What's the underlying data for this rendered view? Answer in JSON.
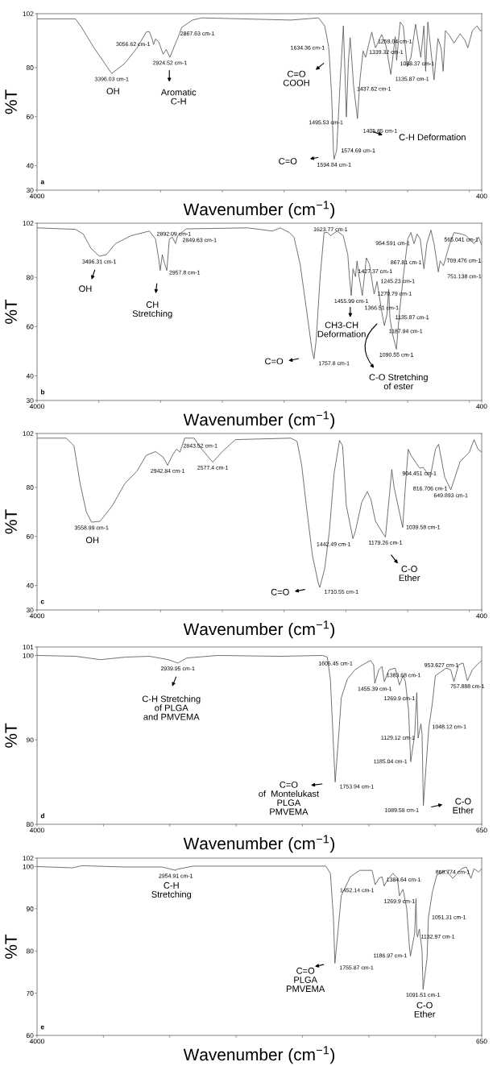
{
  "chart_data": [
    {
      "type": "line",
      "xlabel": "Wavenumber (cm$^{−1}$)",
      "ylabel": "%T",
      "xlim": [
        4000,
        400
      ],
      "ylim": [
        30,
        102
      ],
      "xticks": [
        4000,
        {
          "value": 3500,
          "label": null
        },
        {
          "value": 3000,
          "label": null
        },
        {
          "value": 2500,
          "label": null
        },
        {
          "value": 2000,
          "label": null
        },
        {
          "value": 1500,
          "label": null
        },
        {
          "value": 1000,
          "label": null
        },
        {
          "value": 500,
          "label": null
        },
        400
      ],
      "yticks": [
        30,
        40,
        60,
        80,
        102
      ],
      "series": [
        {
          "color": "#555555",
          "x": [
            4000,
            3689,
            3639,
            3539,
            3396.03,
            3290,
            3190,
            3116,
            3091,
            3066,
            3056.62,
            3041,
            3016,
            2979,
            2954,
            2924.52,
            2904,
            2867.63,
            2862,
            2829,
            2742,
            2667,
            1945,
            1721,
            1671,
            1640,
            1634.36,
            1615,
            1600,
            1594.84,
            1585,
            1574.69,
            1560,
            1545,
            1520,
            1505,
            1495.53,
            1480,
            1465,
            1450,
            1437.62,
            1405.85,
            1385,
            1360,
            1339.32,
            1315,
            1290,
            1270,
            1259.04,
            1210,
            1175,
            1135.87,
            1100,
            1088.37,
            1060,
            1035,
            1003,
            973,
            936,
            893,
            868,
            854,
            836,
            816,
            786,
            754,
            729,
            712,
            694,
            662,
            624,
            575,
            537,
            512,
            475,
            438,
            413,
            400
          ],
          "values": [
            99.9,
            99.9,
            96.4,
            88.1,
            77.6,
            81.7,
            88.1,
            94.5,
            94.7,
            91.3,
            89.4,
            91.7,
            90.6,
            85.5,
            87.4,
            84.2,
            86.8,
            91.3,
            91.9,
            96.4,
            99.4,
            100.3,
            99.4,
            100.3,
            97,
            88.7,
            85.5,
            68.8,
            46,
            42.6,
            44.5,
            46,
            60,
            75.3,
            97,
            75,
            59.9,
            81.7,
            92.2,
            82,
            72.7,
            59.2,
            75.3,
            86.8,
            84.2,
            89.4,
            94.5,
            90,
            88.1,
            93.5,
            89,
            77.2,
            92.6,
            83,
            98.6,
            97,
            80.4,
            84.2,
            97.7,
            84.2,
            97,
            78.5,
            98.6,
            89.4,
            75,
            91.9,
            88.1,
            78.5,
            95.1,
            93.2,
            90,
            93.8,
            91.3,
            88.1,
            95.1,
            97,
            95.1,
            95.1
          ]
        }
      ],
      "annotations": [
        "a",
        "OH",
        "Aromatic\nC-H",
        "C=O\nCOOH",
        "C-H Deformation",
        "C=O",
        {
          "text": "3396.03 cm-1",
          "x": 3396.03,
          "y": 77.6
        },
        {
          "text": "3056.62 cm-1",
          "x": 3056.62,
          "y": 89.4
        },
        {
          "text": "2867.63 cm-1",
          "x": 2867.63,
          "y": 91.3
        },
        {
          "text": "2924.52 cm-1",
          "x": 2924.52,
          "y": 84.2
        },
        {
          "text": "1634.36 cm-1",
          "x": 1634.36,
          "y": 85.5
        },
        {
          "text": "1574.69 cm-1",
          "x": 1574.69,
          "y": 46
        },
        {
          "text": "1594.84 cm-1",
          "x": 1594.84,
          "y": 42.6
        },
        {
          "text": "1495.53 cm-1",
          "x": 1495.53,
          "y": 59.9
        },
        {
          "text": "1437.62 cm-1",
          "x": 1437.62,
          "y": 72.7
        },
        {
          "text": "1405.85 cm-1",
          "x": 1405.85,
          "y": 59.2
        },
        {
          "text": "1339.32 cm-1",
          "x": 1339.32,
          "y": 84.2
        },
        {
          "text": "1259.04 cm-1",
          "x": 1259.04,
          "y": 88.1
        },
        {
          "text": "1088.37 cm-1",
          "x": 1088.37,
          "y": 83
        },
        {
          "text": "1135.87 cm-1",
          "x": 1135.87,
          "y": 77.2
        }
      ]
    },
    {
      "type": "line",
      "xlabel": "Wavenumber (cm$^{−1}$)",
      "ylabel": "%T",
      "xlim": [
        4000,
        400
      ],
      "ylim": [
        30,
        102
      ],
      "xticks": [
        4000,
        {
          "value": 3500,
          "label": null
        },
        {
          "value": 3000,
          "label": null
        },
        {
          "value": 2500,
          "label": null
        },
        {
          "value": 2000,
          "label": null
        },
        {
          "value": 1500,
          "label": null
        },
        {
          "value": 1000,
          "label": null
        },
        {
          "value": 500,
          "label": null
        },
        400
      ],
      "yticks": [
        30,
        40,
        60,
        80,
        102
      ],
      "series": [
        {
          "color": "#555555",
          "x": [
            4000,
            3689,
            3626,
            3564,
            3496.31,
            3439,
            3365,
            3240,
            3091,
            3041,
            3016,
            3003,
            2986,
            2966,
            2949,
            2929,
            2904,
            2879,
            2862,
            2792,
            2294,
            2094,
            2032,
            1957,
            1920,
            1870,
            1820,
            1775,
            1757.8,
            1740,
            1708,
            1676,
            1646,
            1623.77,
            1571,
            1521,
            1484,
            1471,
            1455.99,
            1442,
            1422,
            1409,
            1397,
            1366.51,
            1350,
            1334,
            1309,
            1270.79,
            1247,
            1210,
            1187.94,
            1167,
            1153,
            1143,
            1123,
            1090.55,
            1065,
            1035,
            998,
            973,
            948,
            923,
            898,
            867.81,
            844,
            811,
            786,
            751.138,
            736,
            709.476,
            662,
            624,
            562,
            525,
            462,
            425,
            400
          ],
          "values": [
            100.1,
            99.5,
            97.6,
            91.8,
            88.6,
            89.2,
            93.7,
            96.9,
            98.8,
            95.6,
            87.9,
            82.8,
            89.2,
            85.4,
            82.8,
            95.6,
            96.3,
            93.7,
            96.9,
            99.7,
            100.1,
            98.8,
            100.1,
            98.2,
            96.3,
            85.4,
            67.4,
            50.8,
            46.9,
            54.6,
            80.3,
            98.2,
            98.2,
            96.9,
            98.8,
            96.9,
            89.2,
            80.3,
            72.6,
            83.5,
            80.3,
            86.7,
            81.5,
            72.6,
            80.3,
            87.9,
            85.4,
            73.2,
            78.3,
            66.2,
            60.4,
            64.9,
            75.1,
            63.6,
            57.2,
            50.8,
            66.2,
            80.3,
            95.6,
            98.2,
            93.7,
            97.6,
            95.6,
            83.5,
            93.7,
            99.2,
            93.7,
            82.2,
            86.7,
            84.7,
            93.1,
            98.2,
            97.6,
            96.9,
            93.7,
            96.3,
            93.1
          ]
        }
      ],
      "annotations": [
        "b",
        "OH",
        "CH\nStretching",
        "C=O",
        "CH3-CH\nDeformation",
        "C-O Stretching\nof ester",
        {
          "text": "3496.31 cm-1",
          "x": 3496.31,
          "y": 88.6
        },
        {
          "text": "2892.09 cm-1",
          "x": 2892.09,
          "y": 95.1
        },
        {
          "text": "2957.8 cm-1",
          "x": 2957.8,
          "y": 84.2
        },
        {
          "text": "2849.63 cm-1",
          "x": 2849.63,
          "y": 97.4
        },
        {
          "text": "1757.8 cm-1",
          "x": 1757.8,
          "y": 46.9
        },
        {
          "text": "1623.77 cm-1",
          "x": 1623.77,
          "y": 96.9
        },
        {
          "text": "1427.37 cm-1",
          "x": 1427.37,
          "y": 80.3
        },
        {
          "text": "1366.51 cm-1",
          "x": 1366.51,
          "y": 72.6
        },
        {
          "text": "1455.99 cm-1",
          "x": 1455.99,
          "y": 72.6
        },
        {
          "text": "1270.79 cm-1",
          "x": 1270.79,
          "y": 73.2
        },
        {
          "text": "1245.23 cm-1",
          "x": 1245.23,
          "y": 78.3
        },
        {
          "text": "1135.87 cm-1",
          "x": 1135.87,
          "y": 63.6
        },
        {
          "text": "1187.94 cm-1",
          "x": 1187.94,
          "y": 60.4
        },
        {
          "text": "1090.55 cm-1",
          "x": 1090.55,
          "y": 50.8
        },
        {
          "text": "954.591 cm-1",
          "x": 954.591,
          "y": 93.7
        },
        {
          "text": "867.81 cm-1",
          "x": 867.81,
          "y": 83.5
        },
        {
          "text": "709.476 cm-1",
          "x": 709.476,
          "y": 84.7
        },
        {
          "text": "751.138 cm-1",
          "x": 751.138,
          "y": 82.2
        },
        {
          "text": "565.041 cm-1",
          "x": 565.041,
          "y": 97.6
        }
      ]
    },
    {
      "type": "line",
      "xlabel": "Wavenumber (cm$^{−1}$)",
      "ylabel": "%T",
      "xlim": [
        4000,
        400
      ],
      "ylim": [
        30,
        102
      ],
      "xticks": [
        4000,
        {
          "value": 3500,
          "label": null
        },
        {
          "value": 3000,
          "label": null
        },
        {
          "value": 2500,
          "label": null
        },
        {
          "value": 2000,
          "label": null
        },
        {
          "value": 1500,
          "label": null
        },
        {
          "value": 1000,
          "label": null
        },
        {
          "value": 500,
          "label": null
        },
        400
      ],
      "yticks": [
        30,
        40,
        60,
        80,
        102
      ],
      "series": [
        {
          "color": "#555555",
          "x": [
            4000,
            3763,
            3701,
            3651,
            3601,
            3558.99,
            3489,
            3390,
            3290,
            3190,
            3116,
            3041,
            2979,
            2942.84,
            2904,
            2871,
            2843.52,
            2804,
            2729,
            2667,
            2577.4,
            2493,
            2393,
            1945,
            1895,
            1858,
            1820,
            1770,
            1721,
            1710.55,
            1671,
            1633,
            1596,
            1551,
            1526,
            1496,
            1442.49,
            1422,
            1372,
            1327,
            1297,
            1260,
            1197,
            1179.26,
            1143,
            1128,
            1110,
            1039.58,
            1020,
            995,
            973,
            904.451,
            898,
            874,
            816.706,
            774,
            749,
            699,
            649.893,
            575,
            500,
            462,
            430,
            400
          ],
          "values": [
            100.1,
            100.1,
            96.9,
            81.5,
            70,
            65.8,
            66.2,
            72.6,
            81.5,
            86.7,
            93.1,
            94.6,
            92.4,
            89,
            93.1,
            95.6,
            94.4,
            100.1,
            100.1,
            95.6,
            90.3,
            95,
            99.5,
            100.1,
            98.8,
            89.2,
            72.6,
            52.1,
            40.5,
            39.2,
            46.9,
            62.3,
            85.4,
            99.2,
            96.9,
            72.6,
            59.1,
            62.3,
            73.8,
            78.3,
            75.1,
            66.2,
            61,
            59.7,
            79,
            87.3,
            80.3,
            63.6,
            79,
            95.6,
            93.1,
            88,
            87.9,
            88.2,
            84.1,
            95.6,
            97.6,
            84.1,
            79,
            90.5,
            94.4,
            99.5,
            95.6,
            94.4
          ]
        }
      ],
      "annotations": [
        "c",
        "OH",
        "C=O",
        "C-O\nEther",
        {
          "text": "3558.99 cm-1",
          "x": 3558.99,
          "y": 65.8
        },
        {
          "text": "2843.52 cm-1",
          "x": 2843.52,
          "y": 94.4
        },
        {
          "text": "2942.84 cm-1",
          "x": 2942.84,
          "y": 89
        },
        {
          "text": "2577.4 cm-1",
          "x": 2577.4,
          "y": 90.3
        },
        {
          "text": "1710.55 cm-1",
          "x": 1710.55,
          "y": 39.2
        },
        {
          "text": "1442.49 cm-1",
          "x": 1442.49,
          "y": 59.1
        },
        {
          "text": "1039.58 cm-1",
          "x": 1039.58,
          "y": 63.6
        },
        {
          "text": "1179.26 cm-1",
          "x": 1179.26,
          "y": 59.7
        },
        {
          "text": "904.451 cm-1",
          "x": 904.451,
          "y": 88
        },
        {
          "text": "816.706 cm-1",
          "x": 816.706,
          "y": 84.1
        },
        {
          "text": "649.893 cm-1",
          "x": 649.893,
          "y": 79
        }
      ]
    },
    {
      "type": "line",
      "xlabel": "Wavenumber (cm$^{−1}$)",
      "ylabel": "%T",
      "xlim": [
        4000,
        650
      ],
      "ylim": [
        80,
        101
      ],
      "xticks": [
        4000,
        {
          "value": 3500,
          "label": null
        },
        {
          "value": 3000,
          "label": null
        },
        {
          "value": 2500,
          "label": null
        },
        {
          "value": 2000,
          "label": null
        },
        {
          "value": 1500,
          "label": null
        },
        {
          "value": 1000,
          "label": null
        },
        650
      ],
      "yticks": [
        80,
        90,
        100,
        101
      ],
      "series": [
        {
          "color": "#555555",
          "x": [
            4000,
            3709,
            3523,
            3337,
            3151,
            3011,
            2939.95,
            2872,
            2639,
            2174,
            1848,
            1813,
            1790,
            1767,
            1753.94,
            1727,
            1708,
            1662,
            1615,
            1605.45,
            1546,
            1487,
            1464,
            1455.39,
            1425,
            1401,
            1383.68,
            1348,
            1301,
            1269.9,
            1243,
            1225,
            1201,
            1185.04,
            1155,
            1139,
            1134,
            1129.12,
            1108,
            1099,
            1089.58,
            1069,
            1048.12,
            1022,
            999,
            953.627,
            918,
            883,
            859,
            824,
            790,
            757.888,
            720,
            685,
            650
          ],
          "values": [
            100,
            99.9,
            99.5,
            99.8,
            99.9,
            99.5,
            99.1,
            99.7,
            100,
            99.9,
            100,
            99.8,
            97.2,
            89.4,
            85.0,
            90.6,
            95.0,
            97.2,
            98.1,
            98.3,
            98.9,
            99.4,
            98.9,
            96.7,
            98.3,
            98.7,
            96.9,
            98.3,
            98.5,
            96.5,
            97.6,
            96.9,
            93.5,
            87.4,
            90.6,
            95.6,
            93.1,
            90.2,
            91.9,
            90.6,
            82.2,
            86.9,
            91.5,
            94.3,
            97.6,
            98.1,
            98.5,
            98.3,
            96.9,
            98.9,
            99.1,
            97.0,
            98.3,
            98.9,
            99.4
          ]
        }
      ],
      "annotations": [
        "d",
        "C-H Stretching\nof PLGA\nand PMVEMA",
        "C=O\nof  Montelukast\nPLGA\nPMVEMA",
        "C-O\nEther",
        {
          "text": "2939.95 cm-1",
          "x": 2939.95,
          "y": 99.1
        },
        {
          "text": "1753.94 cm-1",
          "x": 1753.94,
          "y": 85.0
        },
        {
          "text": "1605.45 cm-1",
          "x": 1605.45,
          "y": 98.3
        },
        {
          "text": "1455.39 cm-1",
          "x": 1455.39,
          "y": 96.7
        },
        {
          "text": "1383.68 cm-1",
          "x": 1383.68,
          "y": 96.9
        },
        {
          "text": "1269.9 cm-1",
          "x": 1269.9,
          "y": 96.5
        },
        {
          "text": "1185.04 cm-1",
          "x": 1185.04,
          "y": 87.4
        },
        {
          "text": "1129.12 cm-1",
          "x": 1129.12,
          "y": 90.2
        },
        {
          "text": "1048.12 cm-1",
          "x": 1048.12,
          "y": 91.5
        },
        {
          "text": "1089.58 cm-1",
          "x": 1089.58,
          "y": 82.2
        },
        {
          "text": "953.627 cm-1",
          "x": 953.627,
          "y": 98.1
        },
        {
          "text": "757.888 cm-1",
          "x": 757.888,
          "y": 97.0
        }
      ]
    },
    {
      "type": "line",
      "xlabel": "Wavenumber (cm$^{−1}$)",
      "ylabel": "%T",
      "xlim": [
        4000,
        650
      ],
      "ylim": [
        60,
        102
      ],
      "xticks": [
        4000,
        {
          "value": 3500,
          "label": null
        },
        {
          "value": 3000,
          "label": null
        },
        {
          "value": 2500,
          "label": null
        },
        {
          "value": 2000,
          "label": null
        },
        {
          "value": 1500,
          "label": null
        },
        {
          "value": 1000,
          "label": null
        },
        650
      ],
      "yticks": [
        60,
        70,
        80,
        90,
        100,
        102
      ],
      "series": [
        {
          "color": "#555555",
          "x": [
            4000,
            3732,
            3663,
            3337,
            3058,
            2954.91,
            2953,
            2825,
            1825,
            1790,
            1767,
            1755.87,
            1732,
            1708,
            1639,
            1569,
            1476,
            1452.14,
            1425,
            1401,
            1384.64,
            1359,
            1318,
            1285,
            1269.9,
            1243,
            1215,
            1195,
            1186.97,
            1155,
            1145,
            1139,
            1132.97,
            1120,
            1100,
            1091.51,
            1062,
            1051.31,
            1022,
            988,
            918,
            868.774,
            801,
            766,
            731,
            708,
            673,
            650
          ],
          "values": [
            100,
            99.7,
            100.2,
            99.9,
            99.9,
            99.1,
            99.3,
            100.1,
            100.1,
            98.4,
            87.9,
            77.1,
            84.9,
            93.1,
            97.6,
            99.1,
            99.1,
            95.7,
            97.2,
            97.6,
            95.4,
            96.9,
            98.4,
            97.2,
            93.1,
            94.6,
            90.1,
            81.2,
            78.8,
            84.2,
            92.4,
            84.2,
            83.3,
            85.2,
            80.4,
            70.9,
            78.2,
            87.9,
            93.9,
            98.0,
            99.1,
            97.2,
            99.5,
            99.9,
            97.2,
            99.5,
            98.7,
            99.5
          ]
        }
      ],
      "annotations": [
        "e",
        "C-H\nStretching",
        "C=O\nPLGA\nPMVEMA",
        "C-O\nEther",
        {
          "text": "2954.91 cm-1",
          "x": 2954.91,
          "y": 99.1
        },
        {
          "text": "1755.87 cm-1",
          "x": 1755.87,
          "y": 77.1
        },
        {
          "text": "1452.14 cm-1",
          "x": 1452.14,
          "y": 95.7
        },
        {
          "text": "1384.64 cm-1",
          "x": 1384.64,
          "y": 95.4
        },
        {
          "text": "1269.9 cm-1",
          "x": 1269.9,
          "y": 93.1
        },
        {
          "text": "1186.97 cm-1",
          "x": 1186.97,
          "y": 78.8
        },
        {
          "text": "1132.97 cm-1",
          "x": 1132.97,
          "y": 83.3
        },
        {
          "text": "1051.31 cm-1",
          "x": 1051.31,
          "y": 87.9
        },
        {
          "text": "1091.51 cm-1",
          "x": 1091.51,
          "y": 70.9
        },
        {
          "text": "868.774 cm-1",
          "x": 868.774,
          "y": 97.2
        }
      ]
    }
  ]
}
